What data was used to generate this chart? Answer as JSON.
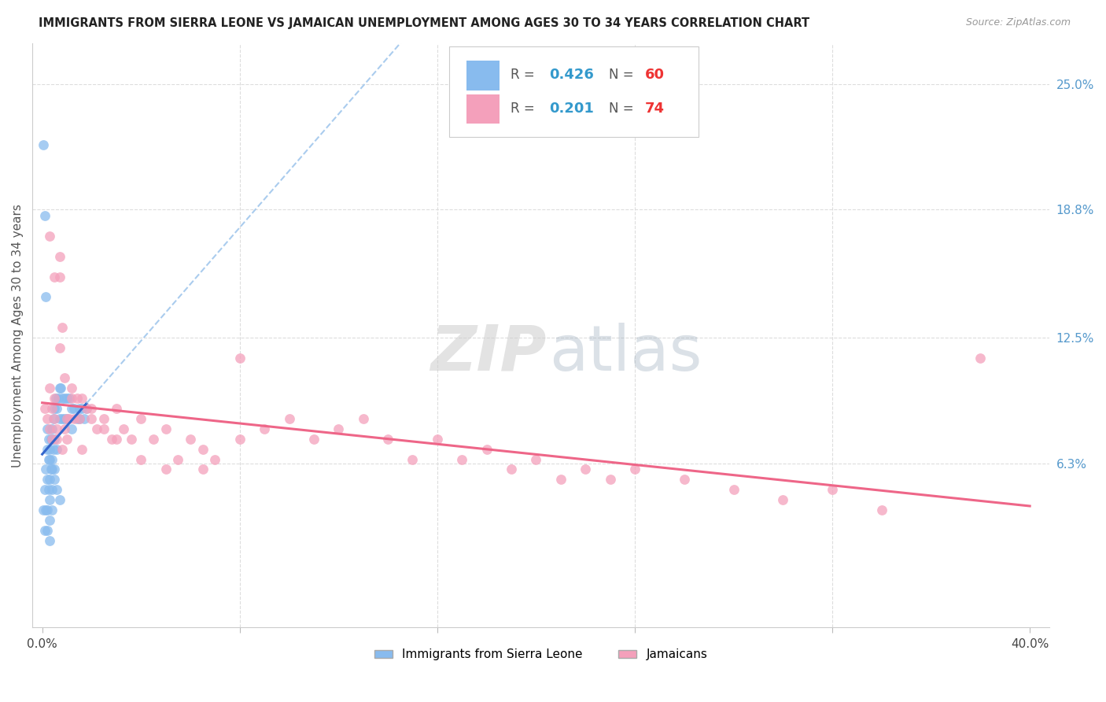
{
  "title": "IMMIGRANTS FROM SIERRA LEONE VS JAMAICAN UNEMPLOYMENT AMONG AGES 30 TO 34 YEARS CORRELATION CHART",
  "source": "Source: ZipAtlas.com",
  "ylabel": "Unemployment Among Ages 30 to 34 years",
  "xlim_min": -0.004,
  "xlim_max": 0.408,
  "ylim_min": -0.018,
  "ylim_max": 0.27,
  "yticks_right": [
    0.063,
    0.125,
    0.188,
    0.25
  ],
  "yticks_right_labels": [
    "6.3%",
    "12.5%",
    "18.8%",
    "25.0%"
  ],
  "blue_R": 0.426,
  "blue_N": 60,
  "pink_R": 0.201,
  "pink_N": 74,
  "blue_color": "#88bbee",
  "pink_color": "#f4a0bb",
  "blue_trend_solid_color": "#3366cc",
  "blue_trend_dash_color": "#aaccee",
  "pink_trend_color": "#ee6688",
  "blue_label": "Immigrants from Sierra Leone",
  "pink_label": "Jamaicans",
  "right_tick_color": "#5599cc",
  "grid_color": "#dddddd",
  "title_color": "#222222",
  "source_color": "#999999",
  "ylabel_color": "#555555",
  "blue_x": [
    0.0005,
    0.001,
    0.001,
    0.0015,
    0.0015,
    0.002,
    0.002,
    0.002,
    0.002,
    0.0025,
    0.0025,
    0.003,
    0.003,
    0.003,
    0.003,
    0.003,
    0.0035,
    0.0035,
    0.004,
    0.004,
    0.004,
    0.004,
    0.0045,
    0.0045,
    0.005,
    0.005,
    0.005,
    0.0055,
    0.006,
    0.006,
    0.0065,
    0.007,
    0.007,
    0.0075,
    0.008,
    0.008,
    0.009,
    0.009,
    0.01,
    0.01,
    0.011,
    0.012,
    0.012,
    0.013,
    0.014,
    0.015,
    0.015,
    0.016,
    0.017,
    0.018,
    0.0005,
    0.001,
    0.0015,
    0.002,
    0.0025,
    0.003,
    0.004,
    0.005,
    0.006,
    0.007
  ],
  "blue_y": [
    0.04,
    0.05,
    0.03,
    0.06,
    0.04,
    0.07,
    0.055,
    0.04,
    0.03,
    0.065,
    0.05,
    0.07,
    0.055,
    0.045,
    0.035,
    0.025,
    0.075,
    0.06,
    0.08,
    0.065,
    0.05,
    0.04,
    0.085,
    0.07,
    0.09,
    0.075,
    0.06,
    0.095,
    0.09,
    0.07,
    0.095,
    0.1,
    0.085,
    0.1,
    0.095,
    0.085,
    0.095,
    0.085,
    0.095,
    0.085,
    0.095,
    0.09,
    0.08,
    0.09,
    0.085,
    0.09,
    0.085,
    0.09,
    0.085,
    0.09,
    0.22,
    0.185,
    0.145,
    0.08,
    0.075,
    0.065,
    0.06,
    0.055,
    0.05,
    0.045
  ],
  "pink_x": [
    0.001,
    0.002,
    0.003,
    0.003,
    0.004,
    0.004,
    0.005,
    0.005,
    0.006,
    0.006,
    0.007,
    0.007,
    0.008,
    0.008,
    0.009,
    0.01,
    0.01,
    0.011,
    0.012,
    0.013,
    0.014,
    0.015,
    0.016,
    0.018,
    0.02,
    0.022,
    0.025,
    0.028,
    0.03,
    0.033,
    0.036,
    0.04,
    0.045,
    0.05,
    0.055,
    0.06,
    0.065,
    0.07,
    0.08,
    0.09,
    0.1,
    0.11,
    0.12,
    0.13,
    0.14,
    0.15,
    0.16,
    0.17,
    0.18,
    0.19,
    0.2,
    0.21,
    0.22,
    0.23,
    0.24,
    0.26,
    0.28,
    0.3,
    0.32,
    0.34,
    0.003,
    0.005,
    0.007,
    0.009,
    0.012,
    0.016,
    0.02,
    0.025,
    0.03,
    0.04,
    0.05,
    0.065,
    0.08,
    0.38
  ],
  "pink_y": [
    0.09,
    0.085,
    0.08,
    0.1,
    0.075,
    0.09,
    0.085,
    0.095,
    0.08,
    0.075,
    0.165,
    0.155,
    0.13,
    0.07,
    0.08,
    0.085,
    0.075,
    0.085,
    0.1,
    0.085,
    0.095,
    0.085,
    0.07,
    0.09,
    0.09,
    0.08,
    0.085,
    0.075,
    0.09,
    0.08,
    0.075,
    0.085,
    0.075,
    0.08,
    0.065,
    0.075,
    0.07,
    0.065,
    0.075,
    0.08,
    0.085,
    0.075,
    0.08,
    0.085,
    0.075,
    0.065,
    0.075,
    0.065,
    0.07,
    0.06,
    0.065,
    0.055,
    0.06,
    0.055,
    0.06,
    0.055,
    0.05,
    0.045,
    0.05,
    0.04,
    0.175,
    0.155,
    0.12,
    0.105,
    0.095,
    0.095,
    0.085,
    0.08,
    0.075,
    0.065,
    0.06,
    0.06,
    0.115,
    0.115
  ]
}
